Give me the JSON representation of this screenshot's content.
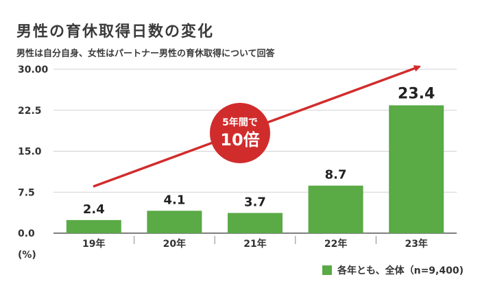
{
  "title": "男性の育休取得日数の変化",
  "subtitle": "男性は自分自身、女性はパートナー男性の育休取得について回答",
  "colors": {
    "bar": "#5aaa46",
    "arrow": "#d12c2c",
    "badge": "#d12c2c",
    "grid": "#d0d0d0",
    "axis": "#555555"
  },
  "chart_data": {
    "type": "bar",
    "categories": [
      "19年",
      "20年",
      "21年",
      "22年",
      "23年"
    ],
    "values": [
      2.4,
      4.1,
      3.7,
      8.7,
      23.4
    ],
    "value_labels": [
      "2.4",
      "4.1",
      "3.7",
      "8.7",
      "23.4"
    ],
    "ylim": [
      0,
      30
    ],
    "ytick_values": [
      0,
      7.5,
      15,
      22.5,
      30
    ],
    "ytick_labels": [
      "0.0",
      "7.5",
      "15.0",
      "22.5",
      "30.00"
    ],
    "yunit": "(%)",
    "legend": "各年とも、全体（n=9,400)",
    "annotation": {
      "line1": "5年間で",
      "line2": "10倍"
    },
    "grid": true
  }
}
